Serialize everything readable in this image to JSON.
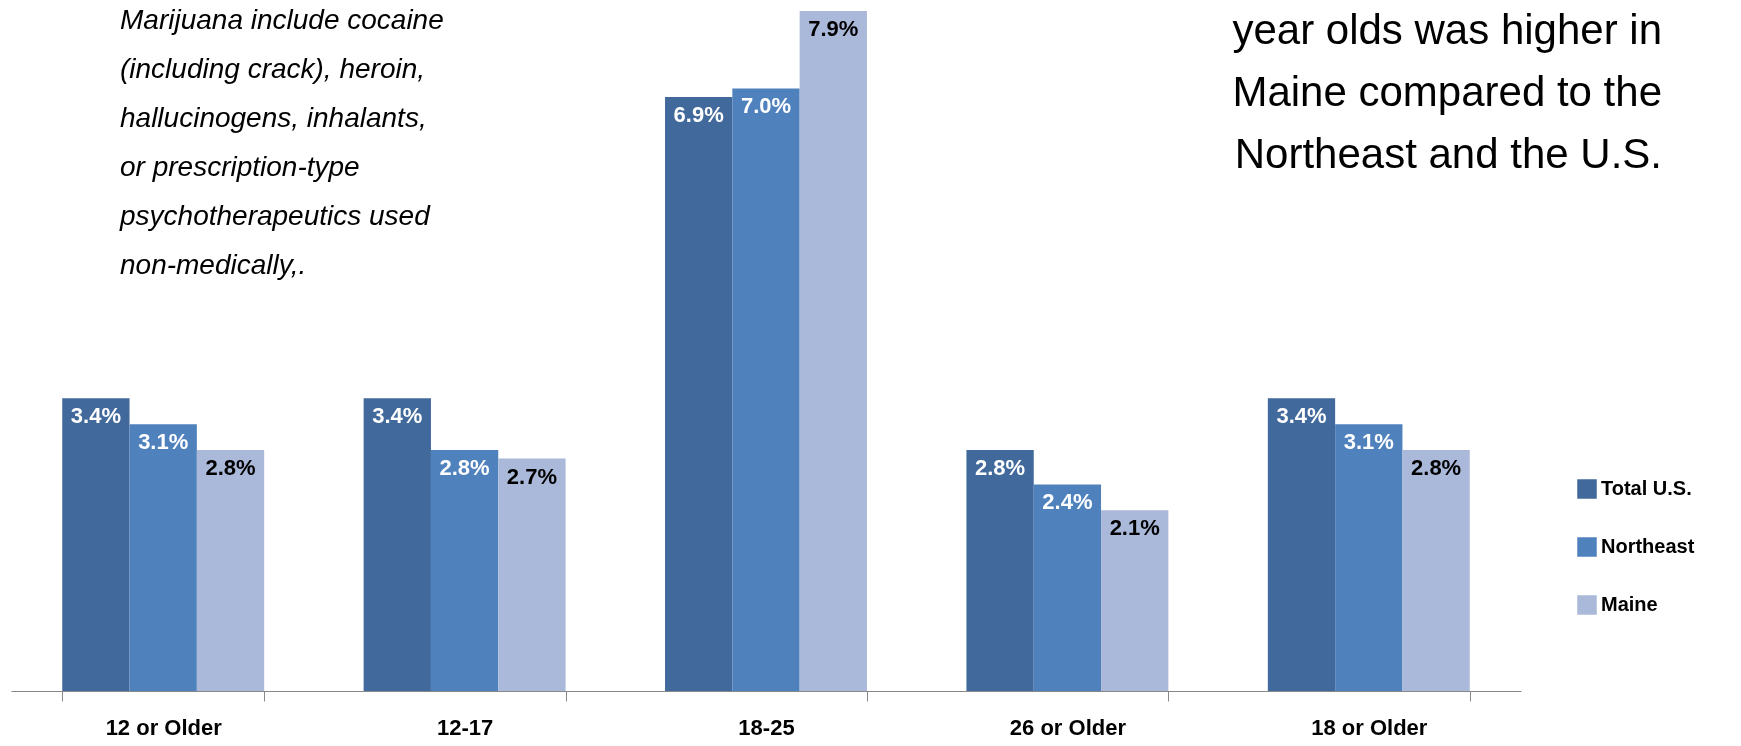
{
  "chart_data": {
    "type": "bar",
    "categories": [
      "12 or Older",
      "12-17",
      "18-25",
      "26 or Older",
      "18 or Older"
    ],
    "series": [
      {
        "name": "Total U.S.",
        "color": "#41699b",
        "values": [
          3.4,
          3.4,
          6.9,
          2.8,
          3.4
        ],
        "value_labels": [
          "3.4%",
          "3.4%",
          "6.9%",
          "2.8%",
          "3.4%"
        ]
      },
      {
        "name": "Northeast",
        "color": "#4f81bd",
        "values": [
          3.1,
          2.8,
          7.0,
          2.4,
          3.1
        ],
        "value_labels": [
          "3.1%",
          "2.8%",
          "7.0%",
          "2.4%",
          "3.1%"
        ]
      },
      {
        "name": "Maine",
        "color": "#aab9d9",
        "values": [
          2.8,
          2.7,
          7.9,
          2.1,
          2.8
        ],
        "value_labels": [
          "2.8%",
          "2.7%",
          "7.9%",
          "2.1%",
          "2.8%"
        ]
      }
    ],
    "legend": "right",
    "annotations": [
      "Marijuana include cocaine\n(including crack), heroin,\nhallucinogens, inhalants,\nor prescription-type\npsychotherapeutics used\nnon-medically,.",
      "year olds was higher in\nMaine compared to the\nNortheast and the U.S."
    ]
  }
}
